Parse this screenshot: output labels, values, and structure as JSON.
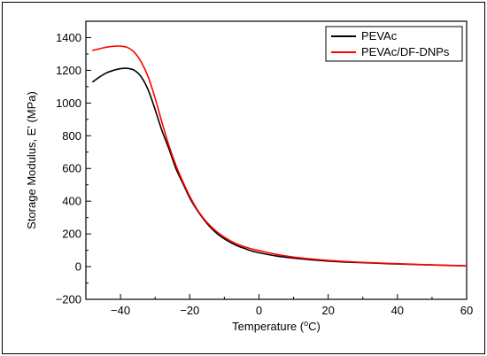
{
  "chart_data": {
    "type": "line",
    "xlabel": "Temperature (",
    "xlabel_degree": "o",
    "xlabel_unit": "C)",
    "ylabel": "Storage Modulus, E' (MPa)",
    "xlim": [
      -50,
      60
    ],
    "ylim": [
      -200,
      1500
    ],
    "x_ticks": [
      -40,
      -20,
      0,
      20,
      40,
      60
    ],
    "x_tick_labels": [
      "−40",
      "−20",
      "0",
      "20",
      "40",
      "60"
    ],
    "y_ticks": [
      -200,
      0,
      200,
      400,
      600,
      800,
      1000,
      1200,
      1400
    ],
    "y_tick_labels": [
      "−200",
      "0",
      "200",
      "400",
      "600",
      "800",
      "1000",
      "1200",
      "1400"
    ],
    "grid": false,
    "legend_position": "top-right",
    "series": [
      {
        "name": "PEVAc",
        "color": "#000000",
        "x": [
          -48,
          -46,
          -44,
          -42,
          -40,
          -38,
          -36,
          -34,
          -32,
          -30,
          -28,
          -26,
          -24,
          -22,
          -20,
          -18,
          -16,
          -14,
          -12,
          -10,
          -8,
          -6,
          -4,
          -2,
          0,
          5,
          10,
          15,
          20,
          25,
          30,
          35,
          40,
          45,
          50,
          55,
          60
        ],
        "y": [
          1130,
          1160,
          1185,
          1200,
          1210,
          1212,
          1200,
          1160,
          1080,
          960,
          830,
          720,
          600,
          510,
          420,
          350,
          290,
          240,
          200,
          170,
          145,
          125,
          110,
          95,
          85,
          65,
          52,
          42,
          34,
          28,
          24,
          20,
          16,
          13,
          10,
          7,
          4
        ]
      },
      {
        "name": "PEVAc/DF-DNPs",
        "color": "#ff0000",
        "x": [
          -48,
          -46,
          -44,
          -42,
          -40,
          -38,
          -36,
          -34,
          -32,
          -30,
          -28,
          -26,
          -24,
          -22,
          -20,
          -18,
          -16,
          -14,
          -12,
          -10,
          -8,
          -6,
          -4,
          -2,
          0,
          5,
          10,
          15,
          20,
          25,
          30,
          35,
          40,
          45,
          50,
          55,
          60
        ],
        "y": [
          1322,
          1332,
          1342,
          1347,
          1348,
          1340,
          1310,
          1250,
          1160,
          1030,
          880,
          740,
          620,
          520,
          430,
          355,
          295,
          248,
          210,
          180,
          155,
          135,
          120,
          108,
          98,
          75,
          58,
          47,
          38,
          31,
          26,
          22,
          18,
          14,
          11,
          8,
          5
        ]
      }
    ]
  }
}
